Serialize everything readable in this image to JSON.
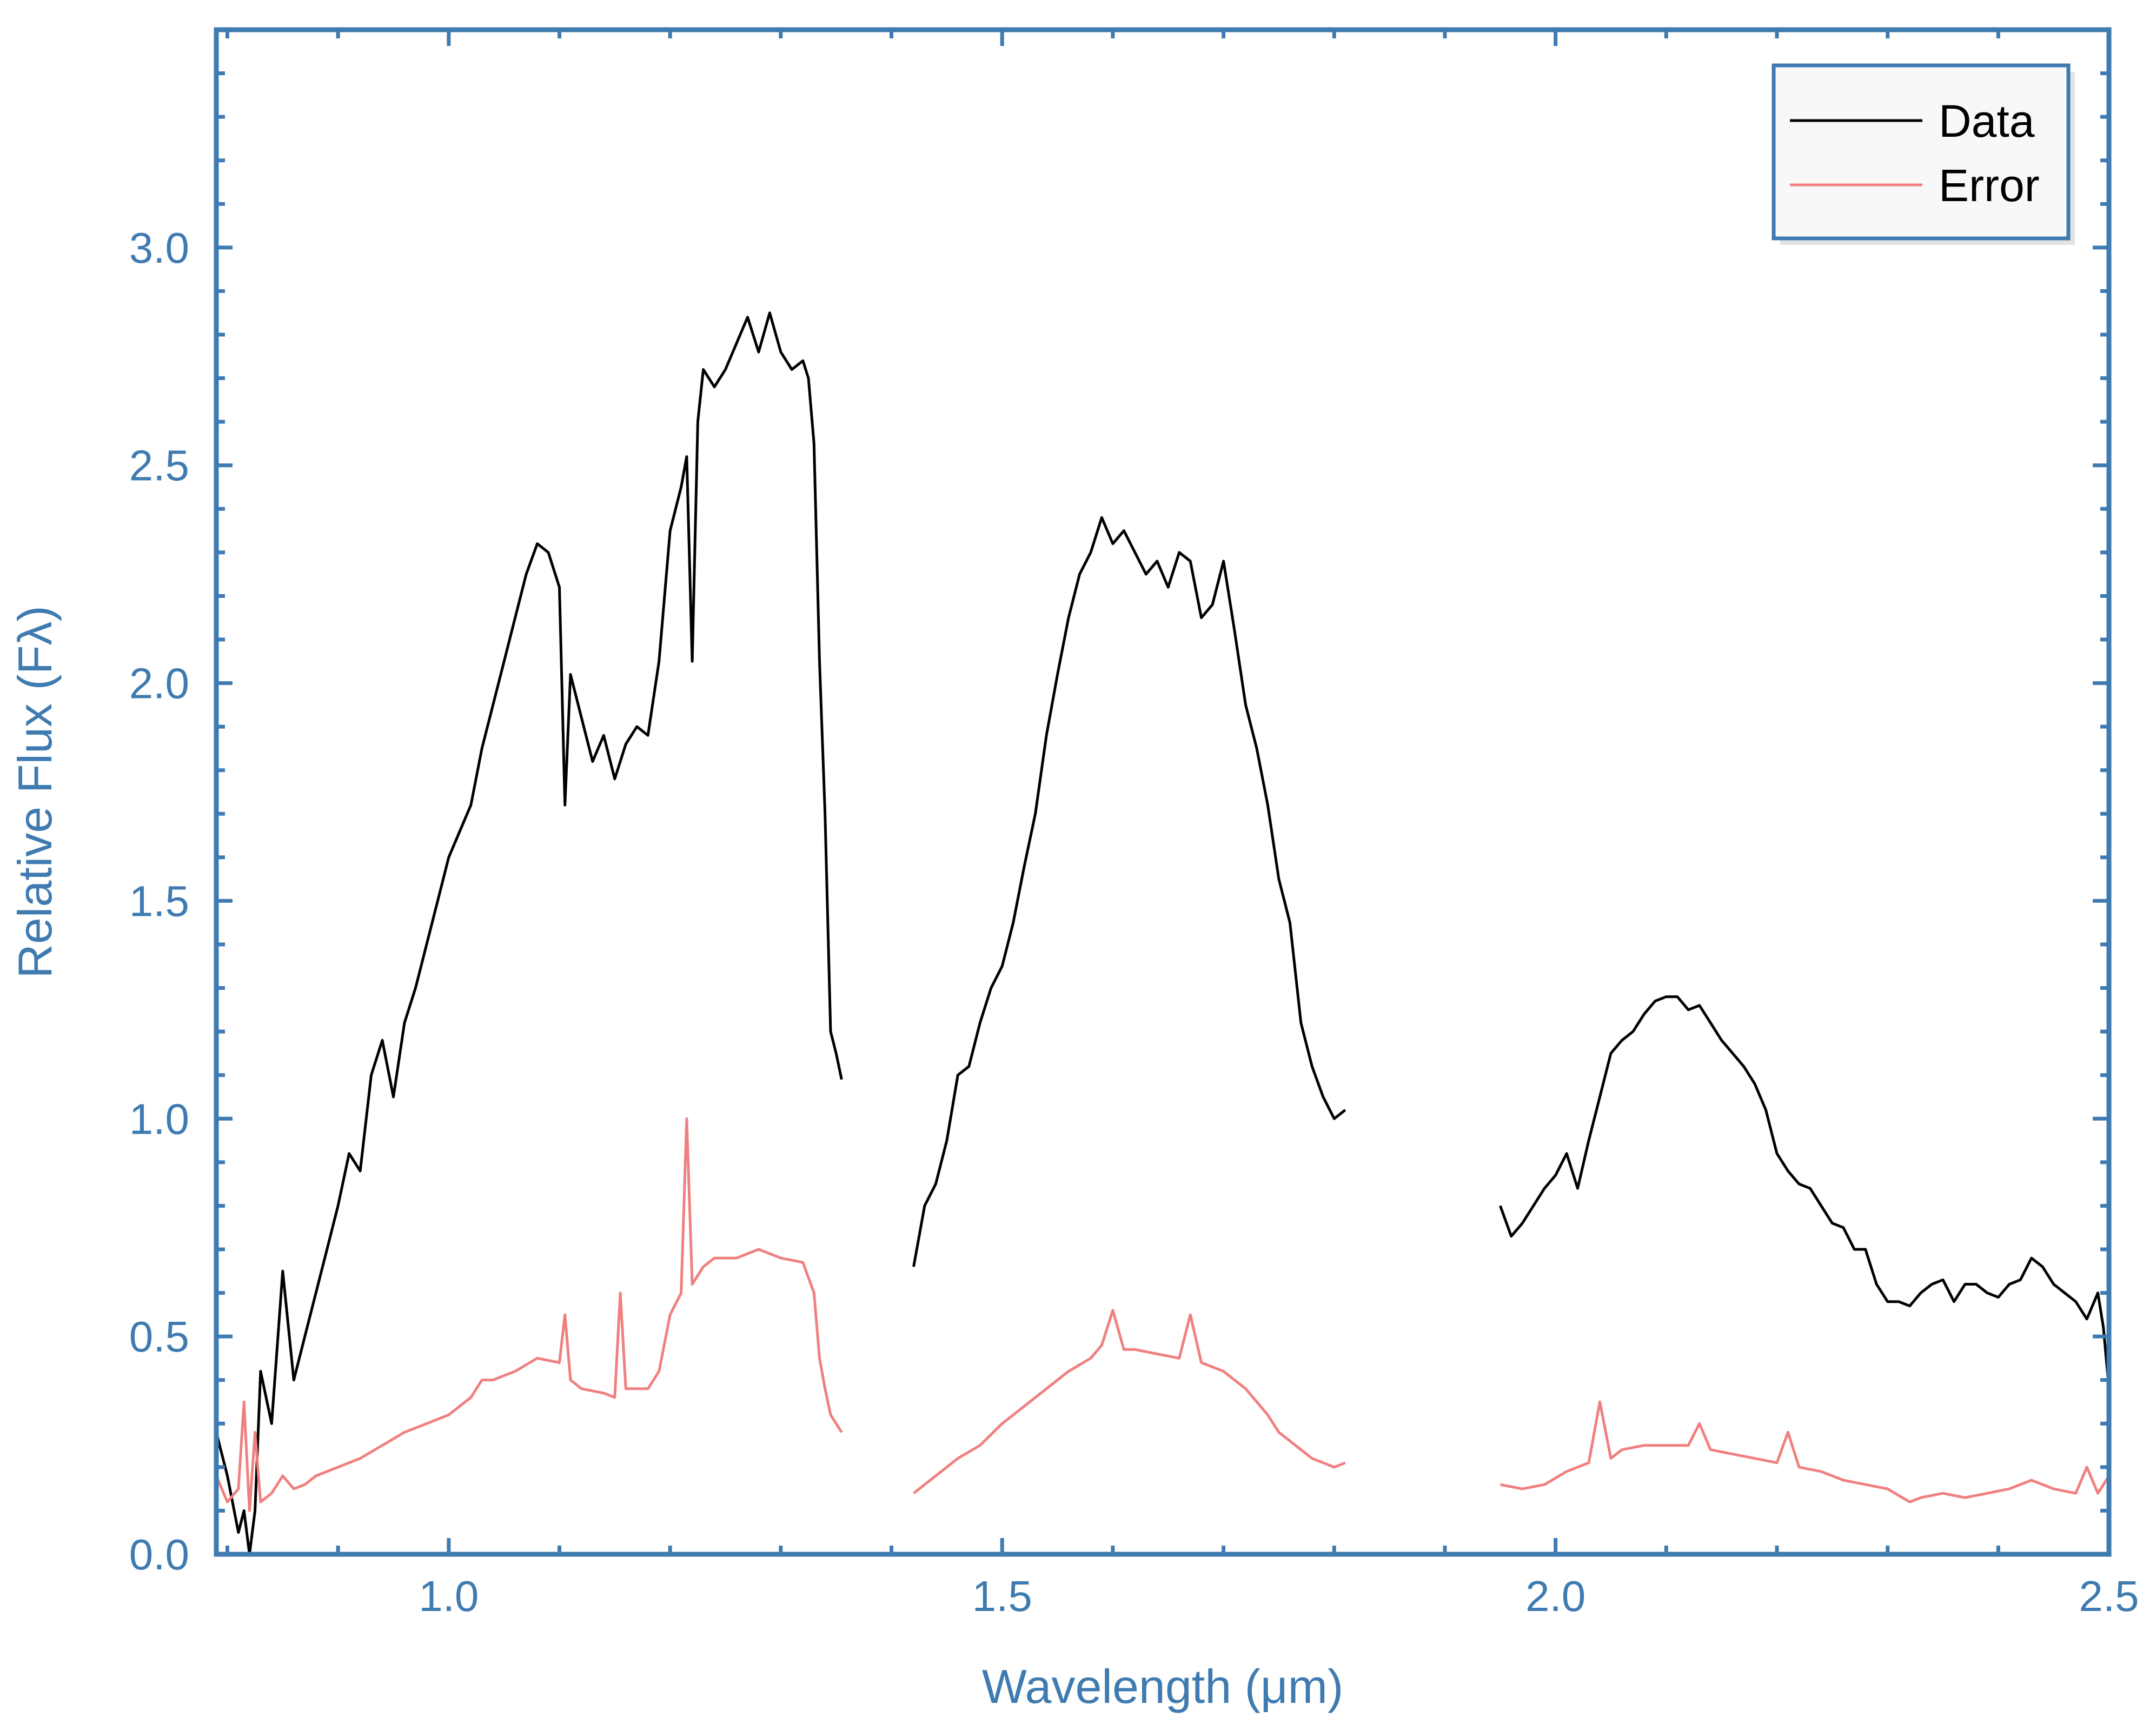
{
  "chart_data": {
    "type": "line",
    "xlabel": "Wavelength (μm)",
    "ylabel": "Relative Flux (Fλ)",
    "xlim": [
      0.79,
      2.5
    ],
    "ylim": [
      0.0,
      3.5
    ],
    "x_ticks": [
      {
        "value": 1.0,
        "label": "1.0"
      },
      {
        "value": 1.5,
        "label": "1.5"
      },
      {
        "value": 2.0,
        "label": "2.0"
      },
      {
        "value": 2.5,
        "label": "2.5"
      }
    ],
    "y_ticks": [
      {
        "value": 0.0,
        "label": "0.0"
      },
      {
        "value": 0.5,
        "label": "0.5"
      },
      {
        "value": 1.0,
        "label": "1.0"
      },
      {
        "value": 1.5,
        "label": "1.5"
      },
      {
        "value": 2.0,
        "label": "2.0"
      },
      {
        "value": 2.5,
        "label": "2.5"
      },
      {
        "value": 3.0,
        "label": "3.0"
      }
    ],
    "grid": false,
    "legend_position": "top-right",
    "axis_color": "#3f7bb0",
    "series": [
      {
        "name": "Data",
        "color": "#000000",
        "segments": [
          [
            [
              0.79,
              0.28
            ],
            [
              0.8,
              0.18
            ],
            [
              0.81,
              0.05
            ],
            [
              0.815,
              0.1
            ],
            [
              0.82,
              0.0
            ],
            [
              0.825,
              0.1
            ],
            [
              0.83,
              0.42
            ],
            [
              0.84,
              0.3
            ],
            [
              0.85,
              0.65
            ],
            [
              0.86,
              0.4
            ],
            [
              0.87,
              0.5
            ],
            [
              0.88,
              0.6
            ],
            [
              0.89,
              0.7
            ],
            [
              0.9,
              0.8
            ],
            [
              0.91,
              0.92
            ],
            [
              0.92,
              0.88
            ],
            [
              0.93,
              1.1
            ],
            [
              0.94,
              1.18
            ],
            [
              0.95,
              1.05
            ],
            [
              0.96,
              1.22
            ],
            [
              0.97,
              1.3
            ],
            [
              0.98,
              1.4
            ],
            [
              0.99,
              1.5
            ],
            [
              1.0,
              1.6
            ],
            [
              1.01,
              1.66
            ],
            [
              1.02,
              1.72
            ],
            [
              1.03,
              1.85
            ],
            [
              1.04,
              1.95
            ],
            [
              1.05,
              2.05
            ],
            [
              1.06,
              2.15
            ],
            [
              1.07,
              2.25
            ],
            [
              1.08,
              2.32
            ],
            [
              1.09,
              2.3
            ],
            [
              1.1,
              2.22
            ],
            [
              1.105,
              1.72
            ],
            [
              1.11,
              2.02
            ],
            [
              1.12,
              1.92
            ],
            [
              1.13,
              1.82
            ],
            [
              1.14,
              1.88
            ],
            [
              1.15,
              1.78
            ],
            [
              1.16,
              1.86
            ],
            [
              1.17,
              1.9
            ],
            [
              1.18,
              1.88
            ],
            [
              1.19,
              2.05
            ],
            [
              1.2,
              2.35
            ],
            [
              1.21,
              2.45
            ],
            [
              1.215,
              2.52
            ],
            [
              1.22,
              2.05
            ],
            [
              1.225,
              2.6
            ],
            [
              1.23,
              2.72
            ],
            [
              1.24,
              2.68
            ],
            [
              1.25,
              2.72
            ],
            [
              1.26,
              2.78
            ],
            [
              1.27,
              2.84
            ],
            [
              1.28,
              2.76
            ],
            [
              1.29,
              2.85
            ],
            [
              1.3,
              2.76
            ],
            [
              1.31,
              2.72
            ],
            [
              1.32,
              2.74
            ],
            [
              1.325,
              2.7
            ],
            [
              1.33,
              2.55
            ],
            [
              1.335,
              2.05
            ],
            [
              1.34,
              1.7
            ],
            [
              1.345,
              1.2
            ],
            [
              1.35,
              1.15
            ],
            [
              1.355,
              1.09
            ]
          ],
          [
            [
              1.42,
              0.66
            ],
            [
              1.43,
              0.8
            ],
            [
              1.44,
              0.85
            ],
            [
              1.45,
              0.95
            ],
            [
              1.46,
              1.1
            ],
            [
              1.47,
              1.12
            ],
            [
              1.48,
              1.22
            ],
            [
              1.49,
              1.3
            ],
            [
              1.5,
              1.35
            ],
            [
              1.51,
              1.45
            ],
            [
              1.52,
              1.58
            ],
            [
              1.53,
              1.7
            ],
            [
              1.54,
              1.88
            ],
            [
              1.55,
              2.02
            ],
            [
              1.56,
              2.15
            ],
            [
              1.57,
              2.25
            ],
            [
              1.58,
              2.3
            ],
            [
              1.59,
              2.38
            ],
            [
              1.6,
              2.32
            ],
            [
              1.61,
              2.35
            ],
            [
              1.62,
              2.3
            ],
            [
              1.63,
              2.25
            ],
            [
              1.64,
              2.28
            ],
            [
              1.65,
              2.22
            ],
            [
              1.66,
              2.3
            ],
            [
              1.67,
              2.28
            ],
            [
              1.68,
              2.15
            ],
            [
              1.69,
              2.18
            ],
            [
              1.7,
              2.28
            ],
            [
              1.71,
              2.12
            ],
            [
              1.72,
              1.95
            ],
            [
              1.73,
              1.85
            ],
            [
              1.74,
              1.72
            ],
            [
              1.75,
              1.55
            ],
            [
              1.76,
              1.45
            ],
            [
              1.77,
              1.22
            ],
            [
              1.78,
              1.12
            ],
            [
              1.79,
              1.05
            ],
            [
              1.8,
              1.0
            ],
            [
              1.81,
              1.02
            ]
          ],
          [
            [
              1.95,
              0.8
            ],
            [
              1.96,
              0.73
            ],
            [
              1.97,
              0.76
            ],
            [
              1.98,
              0.8
            ],
            [
              1.99,
              0.84
            ],
            [
              2.0,
              0.87
            ],
            [
              2.01,
              0.92
            ],
            [
              2.02,
              0.84
            ],
            [
              2.03,
              0.95
            ],
            [
              2.04,
              1.05
            ],
            [
              2.05,
              1.15
            ],
            [
              2.06,
              1.18
            ],
            [
              2.07,
              1.2
            ],
            [
              2.08,
              1.24
            ],
            [
              2.09,
              1.27
            ],
            [
              2.1,
              1.28
            ],
            [
              2.11,
              1.28
            ],
            [
              2.12,
              1.25
            ],
            [
              2.13,
              1.26
            ],
            [
              2.14,
              1.22
            ],
            [
              2.15,
              1.18
            ],
            [
              2.16,
              1.15
            ],
            [
              2.17,
              1.12
            ],
            [
              2.18,
              1.08
            ],
            [
              2.19,
              1.02
            ],
            [
              2.2,
              0.92
            ],
            [
              2.21,
              0.88
            ],
            [
              2.22,
              0.85
            ],
            [
              2.23,
              0.84
            ],
            [
              2.24,
              0.8
            ],
            [
              2.25,
              0.76
            ],
            [
              2.26,
              0.75
            ],
            [
              2.27,
              0.7
            ],
            [
              2.28,
              0.7
            ],
            [
              2.29,
              0.62
            ],
            [
              2.3,
              0.58
            ],
            [
              2.31,
              0.58
            ],
            [
              2.32,
              0.57
            ],
            [
              2.33,
              0.6
            ],
            [
              2.34,
              0.62
            ],
            [
              2.35,
              0.63
            ],
            [
              2.36,
              0.58
            ],
            [
              2.37,
              0.62
            ],
            [
              2.38,
              0.62
            ],
            [
              2.39,
              0.6
            ],
            [
              2.4,
              0.59
            ],
            [
              2.41,
              0.62
            ],
            [
              2.42,
              0.63
            ],
            [
              2.43,
              0.68
            ],
            [
              2.44,
              0.66
            ],
            [
              2.45,
              0.62
            ],
            [
              2.46,
              0.6
            ],
            [
              2.47,
              0.58
            ],
            [
              2.48,
              0.54
            ],
            [
              2.49,
              0.6
            ],
            [
              2.495,
              0.52
            ],
            [
              2.5,
              0.38
            ]
          ]
        ]
      },
      {
        "name": "Error",
        "color": "#f08080",
        "segments": [
          [
            [
              0.79,
              0.18
            ],
            [
              0.8,
              0.12
            ],
            [
              0.81,
              0.15
            ],
            [
              0.815,
              0.35
            ],
            [
              0.82,
              0.1
            ],
            [
              0.825,
              0.28
            ],
            [
              0.83,
              0.12
            ],
            [
              0.84,
              0.14
            ],
            [
              0.85,
              0.18
            ],
            [
              0.86,
              0.15
            ],
            [
              0.87,
              0.16
            ],
            [
              0.88,
              0.18
            ],
            [
              0.9,
              0.2
            ],
            [
              0.92,
              0.22
            ],
            [
              0.94,
              0.25
            ],
            [
              0.96,
              0.28
            ],
            [
              0.98,
              0.3
            ],
            [
              1.0,
              0.32
            ],
            [
              1.02,
              0.36
            ],
            [
              1.03,
              0.4
            ],
            [
              1.04,
              0.4
            ],
            [
              1.06,
              0.42
            ],
            [
              1.08,
              0.45
            ],
            [
              1.1,
              0.44
            ],
            [
              1.105,
              0.55
            ],
            [
              1.11,
              0.4
            ],
            [
              1.12,
              0.38
            ],
            [
              1.14,
              0.37
            ],
            [
              1.15,
              0.36
            ],
            [
              1.155,
              0.6
            ],
            [
              1.16,
              0.38
            ],
            [
              1.18,
              0.38
            ],
            [
              1.19,
              0.42
            ],
            [
              1.2,
              0.55
            ],
            [
              1.21,
              0.6
            ],
            [
              1.215,
              1.0
            ],
            [
              1.22,
              0.62
            ],
            [
              1.23,
              0.66
            ],
            [
              1.24,
              0.68
            ],
            [
              1.26,
              0.68
            ],
            [
              1.28,
              0.7
            ],
            [
              1.3,
              0.68
            ],
            [
              1.32,
              0.67
            ],
            [
              1.33,
              0.6
            ],
            [
              1.335,
              0.45
            ],
            [
              1.34,
              0.38
            ],
            [
              1.345,
              0.32
            ],
            [
              1.35,
              0.3
            ],
            [
              1.355,
              0.28
            ]
          ],
          [
            [
              1.42,
              0.14
            ],
            [
              1.44,
              0.18
            ],
            [
              1.46,
              0.22
            ],
            [
              1.48,
              0.25
            ],
            [
              1.5,
              0.3
            ],
            [
              1.52,
              0.34
            ],
            [
              1.54,
              0.38
            ],
            [
              1.56,
              0.42
            ],
            [
              1.58,
              0.45
            ],
            [
              1.59,
              0.48
            ],
            [
              1.6,
              0.56
            ],
            [
              1.61,
              0.47
            ],
            [
              1.62,
              0.47
            ],
            [
              1.64,
              0.46
            ],
            [
              1.66,
              0.45
            ],
            [
              1.67,
              0.55
            ],
            [
              1.68,
              0.44
            ],
            [
              1.7,
              0.42
            ],
            [
              1.72,
              0.38
            ],
            [
              1.73,
              0.35
            ],
            [
              1.74,
              0.32
            ],
            [
              1.75,
              0.28
            ],
            [
              1.76,
              0.26
            ],
            [
              1.77,
              0.24
            ],
            [
              1.78,
              0.22
            ],
            [
              1.79,
              0.21
            ],
            [
              1.8,
              0.2
            ],
            [
              1.81,
              0.21
            ]
          ],
          [
            [
              1.95,
              0.16
            ],
            [
              1.97,
              0.15
            ],
            [
              1.99,
              0.16
            ],
            [
              2.01,
              0.19
            ],
            [
              2.03,
              0.21
            ],
            [
              2.04,
              0.35
            ],
            [
              2.05,
              0.22
            ],
            [
              2.06,
              0.24
            ],
            [
              2.08,
              0.25
            ],
            [
              2.1,
              0.25
            ],
            [
              2.12,
              0.25
            ],
            [
              2.13,
              0.3
            ],
            [
              2.14,
              0.24
            ],
            [
              2.16,
              0.23
            ],
            [
              2.18,
              0.22
            ],
            [
              2.2,
              0.21
            ],
            [
              2.21,
              0.28
            ],
            [
              2.22,
              0.2
            ],
            [
              2.24,
              0.19
            ],
            [
              2.26,
              0.17
            ],
            [
              2.28,
              0.16
            ],
            [
              2.3,
              0.15
            ],
            [
              2.32,
              0.12
            ],
            [
              2.33,
              0.13
            ],
            [
              2.35,
              0.14
            ],
            [
              2.37,
              0.13
            ],
            [
              2.39,
              0.14
            ],
            [
              2.41,
              0.15
            ],
            [
              2.43,
              0.17
            ],
            [
              2.45,
              0.15
            ],
            [
              2.47,
              0.14
            ],
            [
              2.48,
              0.2
            ],
            [
              2.49,
              0.14
            ],
            [
              2.5,
              0.18
            ]
          ]
        ]
      }
    ]
  }
}
